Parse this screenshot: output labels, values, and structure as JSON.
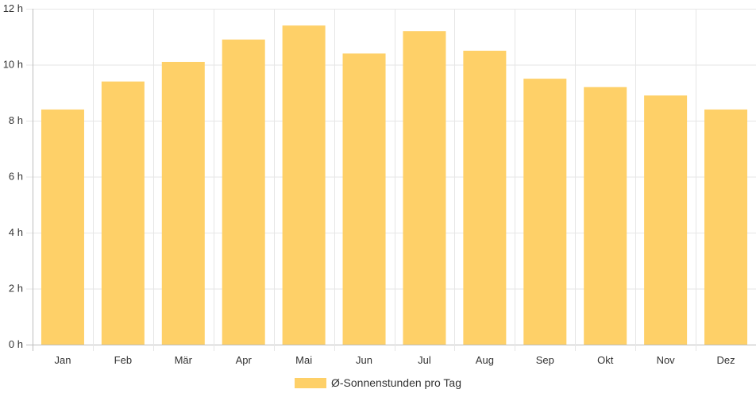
{
  "chart_data": {
    "type": "bar",
    "categories": [
      "Jan",
      "Feb",
      "Mär",
      "Apr",
      "Mai",
      "Jun",
      "Jul",
      "Aug",
      "Sep",
      "Okt",
      "Nov",
      "Dez"
    ],
    "series": [
      {
        "name": "Ø-Sonnenstunden pro Tag",
        "values": [
          8.4,
          9.4,
          10.1,
          10.9,
          11.4,
          10.4,
          11.2,
          10.5,
          9.5,
          9.2,
          8.9,
          8.4
        ]
      }
    ],
    "ylim": [
      0,
      12
    ],
    "yticks": [
      0,
      2,
      4,
      6,
      8,
      10,
      12
    ],
    "ytick_suffix": " h",
    "grid": true,
    "legend_position": "bottom",
    "colors": {
      "bar": "#fed068",
      "grid": "#e6e6e6",
      "axis": "#bdbdbd"
    }
  }
}
